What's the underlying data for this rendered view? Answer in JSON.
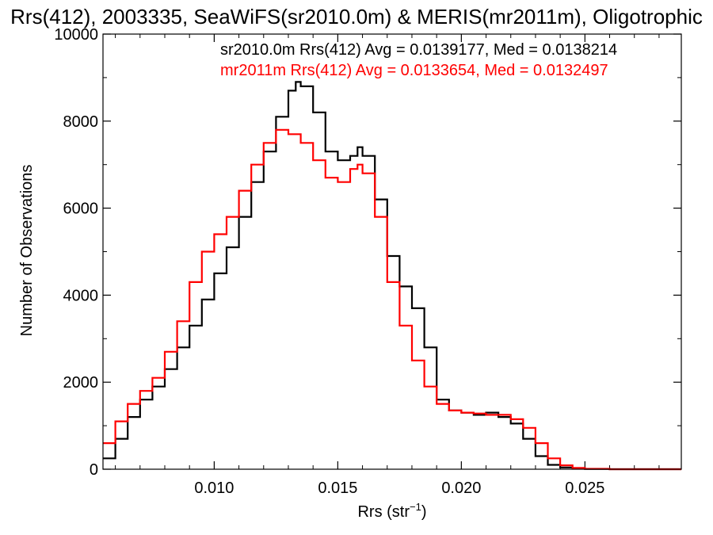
{
  "chart_data": {
    "type": "line",
    "title": "Rrs(412), 2003335, SeaWiFS(sr2010.0m) & MERIS(mr2011m), Oligotrophic",
    "xlabel": "Rrs (str",
    "xlabel_sup": "−1",
    "xlabel_end": ")",
    "ylabel": "Number of Observations",
    "xlim": [
      0.0055,
      0.0289
    ],
    "ylim": [
      0,
      10000
    ],
    "xticks": [
      0.01,
      0.015,
      0.02,
      0.025
    ],
    "xtick_labels": [
      "0.010",
      "0.015",
      "0.020",
      "0.025"
    ],
    "yticks": [
      0,
      2000,
      4000,
      6000,
      8000,
      10000
    ],
    "ytick_labels": [
      "0",
      "2000",
      "4000",
      "6000",
      "8000",
      "10000"
    ],
    "grid": false,
    "legend_position": "top-right",
    "series": [
      {
        "name": "sr2010.0m",
        "legend": "sr2010.0m Rrs(412) Avg = 0.0139177, Med = 0.0138214",
        "color": "#000000",
        "x": [
          0.0055,
          0.006,
          0.0065,
          0.007,
          0.0075,
          0.008,
          0.0085,
          0.009,
          0.0095,
          0.01,
          0.0105,
          0.011,
          0.0115,
          0.012,
          0.0125,
          0.013,
          0.0133,
          0.0135,
          0.014,
          0.0145,
          0.015,
          0.0155,
          0.0158,
          0.016,
          0.0165,
          0.017,
          0.0175,
          0.018,
          0.0185,
          0.019,
          0.0195,
          0.02,
          0.0205,
          0.021,
          0.0215,
          0.022,
          0.0225,
          0.023,
          0.0235,
          0.024,
          0.0245,
          0.025,
          0.026,
          0.027,
          0.028,
          0.0289
        ],
        "values": [
          250,
          700,
          1200,
          1600,
          1900,
          2300,
          2800,
          3300,
          3900,
          4500,
          5100,
          5800,
          6600,
          7300,
          8100,
          8700,
          8900,
          8800,
          8200,
          7300,
          7100,
          7200,
          7400,
          7200,
          6200,
          4900,
          4200,
          3700,
          2800,
          1600,
          1350,
          1300,
          1250,
          1300,
          1200,
          1050,
          700,
          300,
          100,
          40,
          15,
          5,
          0,
          0,
          0,
          0
        ]
      },
      {
        "name": "mr2011m",
        "legend": "mr2011m Rrs(412) Avg = 0.0133654, Med = 0.0132497",
        "color": "#ff0000",
        "x": [
          0.0055,
          0.006,
          0.0065,
          0.007,
          0.0075,
          0.008,
          0.0085,
          0.009,
          0.0095,
          0.01,
          0.0105,
          0.011,
          0.0115,
          0.012,
          0.0125,
          0.013,
          0.0135,
          0.014,
          0.0145,
          0.015,
          0.0155,
          0.0158,
          0.016,
          0.0165,
          0.017,
          0.0175,
          0.018,
          0.0185,
          0.019,
          0.0195,
          0.02,
          0.0205,
          0.021,
          0.0215,
          0.022,
          0.0225,
          0.023,
          0.0235,
          0.024,
          0.0245,
          0.025,
          0.026,
          0.027,
          0.028,
          0.0289
        ],
        "values": [
          600,
          1100,
          1500,
          1800,
          2100,
          2700,
          3400,
          4300,
          5000,
          5400,
          5800,
          6400,
          7000,
          7500,
          7800,
          7700,
          7500,
          7100,
          6700,
          6600,
          6900,
          7000,
          6800,
          5800,
          4300,
          3300,
          2500,
          1900,
          1500,
          1350,
          1300,
          1280,
          1250,
          1250,
          1150,
          950,
          600,
          250,
          90,
          30,
          10,
          0,
          0,
          0,
          0
        ]
      }
    ]
  }
}
